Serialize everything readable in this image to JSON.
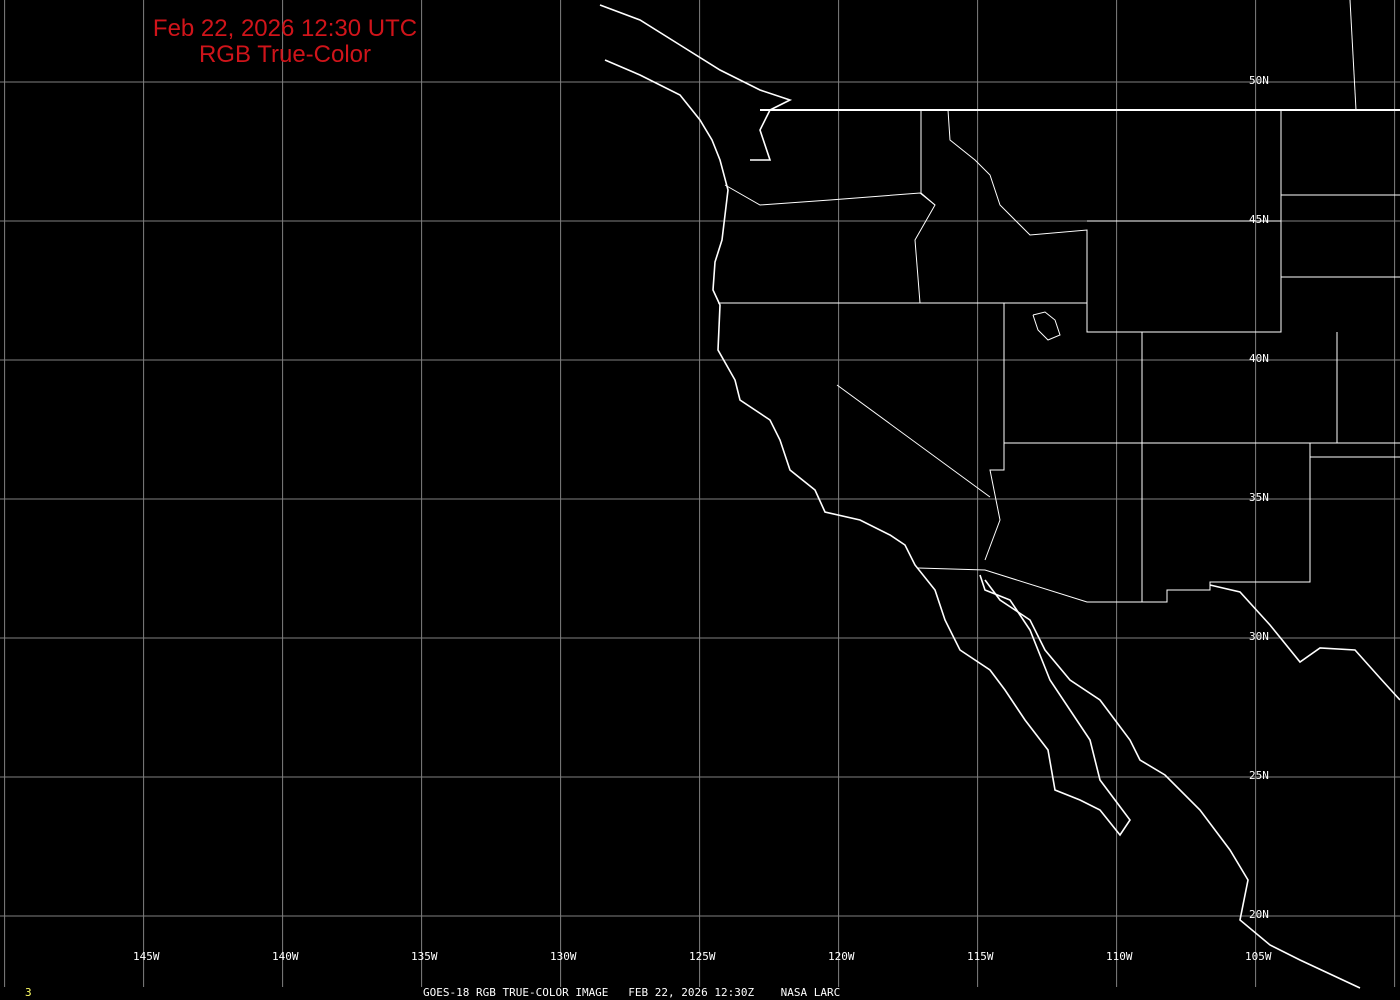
{
  "title": {
    "line1": "Feb 22, 2026 12:30 UTC",
    "line2": "RGB True-Color",
    "color": "#d0141a"
  },
  "longitude_labels": [
    "145W",
    "140W",
    "135W",
    "130W",
    "125W",
    "120W",
    "115W",
    "110W",
    "105W"
  ],
  "latitude_labels": [
    "50N",
    "45N",
    "40N",
    "35N",
    "30N",
    "25N",
    "20N"
  ],
  "footer": {
    "frame": "3",
    "caption": "GOES-18 RGB TRUE-COLOR IMAGE   FEB 22, 2026 12:30Z    NASA LARC"
  },
  "colors": {
    "background": "#000000",
    "grid": "#808080",
    "coastline": "#ffffff",
    "frame_number": "#ffff66"
  }
}
